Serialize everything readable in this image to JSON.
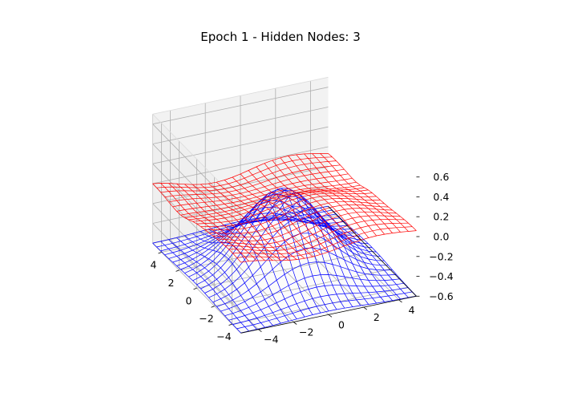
{
  "chart_data": {
    "type": "wireframe-3d",
    "title": "Epoch 1 - Hidden Nodes: 3",
    "xlim": [
      -5,
      5
    ],
    "ylim": [
      -5,
      5
    ],
    "zlim": [
      -0.6,
      0.7
    ],
    "xticks": [
      "−4",
      "−2",
      "0",
      "2",
      "4"
    ],
    "yticks": [
      "−4",
      "−2",
      "0",
      "2",
      "4"
    ],
    "zticks": [
      "−0.6",
      "−0.4",
      "−0.2",
      "0.0",
      "0.2",
      "0.4",
      "0.6"
    ],
    "xtick_values": [
      -4,
      -2,
      0,
      2,
      4
    ],
    "ytick_values": [
      -4,
      -2,
      0,
      2,
      4
    ],
    "ztick_values": [
      -0.6,
      -0.4,
      -0.2,
      0.0,
      0.2,
      0.4,
      0.6
    ],
    "grid": true,
    "series": [
      {
        "color": "#0000ff",
        "surface": "target: z = 0.8*exp(-(x^2+y^2)/8) - 0.6, peak ≈ 0.2 at (0,0), ≈ -0.6 at edges",
        "peak": 0.2,
        "base": -0.6
      },
      {
        "color": "#ff0000",
        "surface": "network output: nearly flat sheet near z ≈ 0.0 with shallow ripples",
        "level": 0.0
      }
    ]
  }
}
